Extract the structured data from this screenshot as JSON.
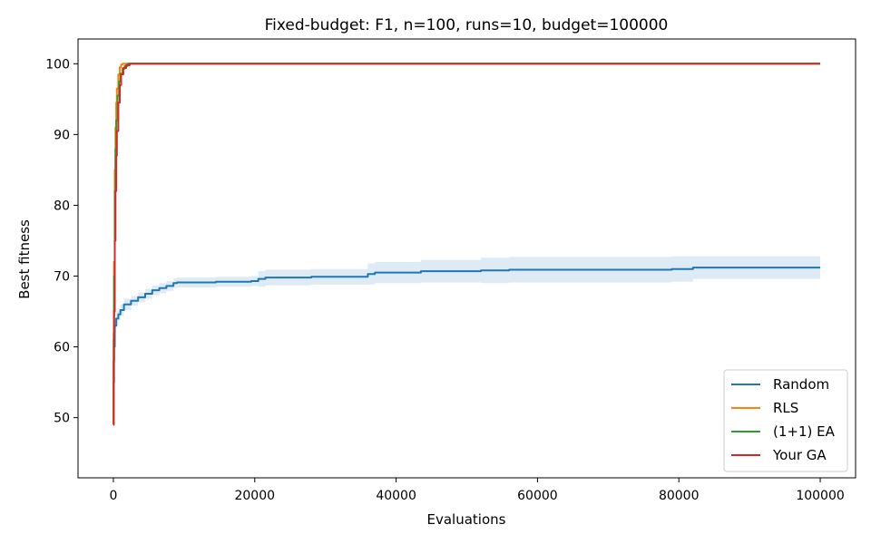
{
  "chart_data": {
    "type": "line",
    "title": "Fixed-budget: F1, n=100, runs=10, budget=100000",
    "xlabel": "Evaluations",
    "ylabel": "Best fitness",
    "xlim": [
      -5000,
      105000
    ],
    "ylim": [
      41.5,
      103.5
    ],
    "xticks": [
      0,
      20000,
      40000,
      60000,
      80000,
      100000
    ],
    "yticks": [
      50,
      60,
      70,
      80,
      90,
      100
    ],
    "grid": false,
    "legend_position": "lower-right",
    "series": [
      {
        "name": "Random",
        "color": "#1f77b4",
        "band_color": "#1f77b4",
        "x": [
          0,
          50,
          100,
          200,
          400,
          700,
          1000,
          1500,
          2500,
          3500,
          4500,
          5500,
          6500,
          7500,
          8500,
          9000,
          14500,
          19500,
          20500,
          21500,
          28000,
          36000,
          37000,
          43500,
          52000,
          56000,
          79000,
          82000,
          100000
        ],
        "y": [
          49,
          55,
          60,
          63,
          64,
          64.6,
          65.2,
          66,
          66.5,
          67,
          67.5,
          68,
          68.3,
          68.6,
          69,
          69.1,
          69.2,
          69.3,
          69.6,
          69.8,
          69.9,
          70.3,
          70.5,
          70.7,
          70.8,
          70.9,
          71.0,
          71.2,
          71.2
        ],
        "lower": [
          49,
          54,
          59,
          62,
          63,
          63.8,
          64.4,
          65.2,
          65.8,
          66.3,
          66.8,
          67.3,
          67.6,
          67.9,
          68.3,
          68.4,
          68.5,
          68.6,
          68.5,
          68.7,
          68.8,
          68.8,
          69.0,
          69.1,
          69.0,
          69.1,
          69.2,
          69.6,
          69.6
        ],
        "upper": [
          49,
          56,
          61,
          64,
          65,
          65.4,
          66.0,
          66.8,
          67.2,
          67.7,
          68.2,
          68.7,
          69.0,
          69.3,
          69.7,
          69.8,
          69.9,
          70.0,
          70.7,
          70.9,
          71.0,
          71.8,
          72.0,
          72.3,
          72.6,
          72.7,
          72.8,
          72.8,
          72.8
        ]
      },
      {
        "name": "RLS",
        "color": "#ff7f0e",
        "x": [
          0,
          50,
          100,
          200,
          300,
          400,
          500,
          700,
          900,
          1100,
          1300,
          100000
        ],
        "y": [
          49,
          62,
          72,
          85,
          91,
          94.5,
          96.5,
          98.5,
          99.5,
          99.9,
          100,
          100
        ]
      },
      {
        "name": "(1+1) EA",
        "color": "#2ca02c",
        "x": [
          0,
          50,
          100,
          200,
          300,
          400,
          600,
          800,
          1000,
          1300,
          1600,
          2000,
          100000
        ],
        "y": [
          49,
          61,
          70,
          82,
          88,
          92,
          95.5,
          97.5,
          98.6,
          99.3,
          99.7,
          100,
          100
        ]
      },
      {
        "name": "Your GA",
        "color": "#d62728",
        "x": [
          0,
          50,
          100,
          200,
          300,
          400,
          500,
          700,
          900,
          1100,
          1400,
          1800,
          2300,
          100000
        ],
        "y": [
          49,
          58,
          65,
          75,
          82,
          87,
          90.5,
          94.5,
          97,
          98.5,
          99.4,
          99.8,
          100,
          100
        ]
      }
    ]
  }
}
